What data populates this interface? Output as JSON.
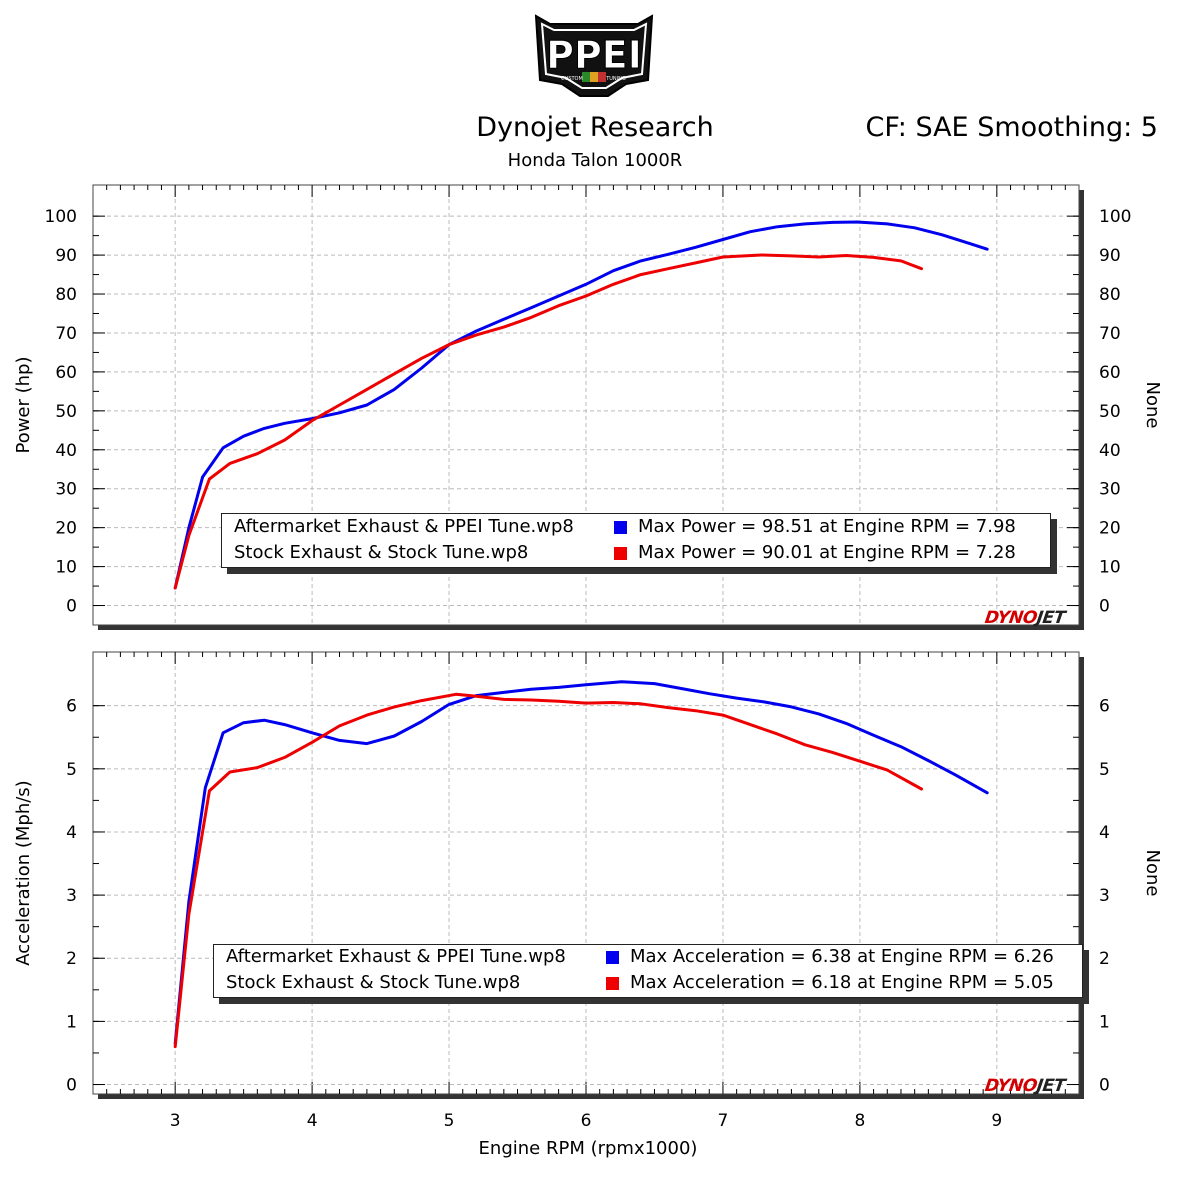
{
  "header": {
    "title": "Dynojet Research",
    "subtitle": "Honda Talon 1000R",
    "correction": "CF: SAE Smoothing: 5",
    "logo_text": "PPEI",
    "logo_tagline": "CUSTOM TUNING"
  },
  "watermark": {
    "part1": "DYNO",
    "part2": "JET"
  },
  "colors": {
    "tuned": "#0000ee",
    "stock": "#ee0000"
  },
  "chart_data": [
    {
      "type": "line",
      "ylabel": "Power (hp)",
      "ylabel_right": "None",
      "xlim": [
        2.4,
        9.6
      ],
      "ylim": [
        -5,
        108
      ],
      "yticks": [
        0,
        10,
        20,
        30,
        40,
        50,
        60,
        70,
        80,
        90,
        100
      ],
      "grid": true,
      "legend": {
        "placement": "bottom-right",
        "entries": [
          {
            "file": "Aftermarket Exhaust & PPEI Tune.wp8",
            "stat": "Max Power = 98.51 at Engine RPM = 7.98",
            "color": "#0000ee"
          },
          {
            "file": "Stock Exhaust & Stock Tune.wp8",
            "stat": "Max Power = 90.01 at Engine RPM = 7.28",
            "color": "#ee0000"
          }
        ]
      },
      "series": [
        {
          "name": "Aftermarket Exhaust & PPEI Tune.wp8",
          "color": "#0000ee",
          "x": [
            3.0,
            3.1,
            3.2,
            3.35,
            3.5,
            3.65,
            3.8,
            4.0,
            4.2,
            4.4,
            4.6,
            4.8,
            5.0,
            5.2,
            5.4,
            5.6,
            5.8,
            6.0,
            6.2,
            6.4,
            6.6,
            6.8,
            7.0,
            7.2,
            7.4,
            7.6,
            7.8,
            7.98,
            8.2,
            8.4,
            8.6,
            8.8,
            8.93
          ],
          "values": [
            4.5,
            20,
            33,
            40.5,
            43.5,
            45.5,
            46.8,
            48,
            49.5,
            51.5,
            55.5,
            61,
            67,
            70.5,
            73.5,
            76.5,
            79.5,
            82.5,
            86,
            88.5,
            90.2,
            92,
            94,
            96,
            97.3,
            98,
            98.4,
            98.51,
            98,
            97,
            95.2,
            93,
            91.5
          ]
        },
        {
          "name": "Stock Exhaust & Stock Tune.wp8",
          "color": "#ee0000",
          "x": [
            3.0,
            3.1,
            3.25,
            3.4,
            3.6,
            3.8,
            4.0,
            4.2,
            4.4,
            4.6,
            4.8,
            5.0,
            5.2,
            5.4,
            5.6,
            5.8,
            6.0,
            6.2,
            6.4,
            6.6,
            6.8,
            7.0,
            7.28,
            7.5,
            7.7,
            7.9,
            8.1,
            8.3,
            8.45
          ],
          "values": [
            4.5,
            18,
            32.5,
            36.5,
            39,
            42.5,
            47.5,
            51.5,
            55.5,
            59.5,
            63.5,
            67,
            69.5,
            71.5,
            74,
            77,
            79.5,
            82.5,
            85,
            86.5,
            88,
            89.5,
            90.01,
            89.8,
            89.5,
            89.9,
            89.4,
            88.5,
            86.5
          ]
        }
      ]
    },
    {
      "type": "line",
      "xlabel": "Engine RPM (rpmx1000)",
      "ylabel": "Acceleration (Mph/s)",
      "ylabel_right": "None",
      "xlim": [
        2.4,
        9.6
      ],
      "ylim": [
        -0.15,
        6.85
      ],
      "xticks": [
        3,
        4,
        5,
        6,
        7,
        8,
        9
      ],
      "yticks": [
        0,
        1,
        2,
        3,
        4,
        5,
        6
      ],
      "grid": true,
      "legend": {
        "placement": "bottom-right",
        "entries": [
          {
            "file": "Aftermarket Exhaust & PPEI Tune.wp8",
            "stat": "Max Acceleration = 6.38 at Engine RPM = 6.26",
            "color": "#0000ee"
          },
          {
            "file": "Stock Exhaust & Stock Tune.wp8",
            "stat": "Max Acceleration = 6.18 at Engine RPM = 5.05",
            "color": "#ee0000"
          }
        ]
      },
      "series": [
        {
          "name": "Aftermarket Exhaust & PPEI Tune.wp8",
          "color": "#0000ee",
          "x": [
            3.0,
            3.1,
            3.22,
            3.35,
            3.5,
            3.65,
            3.8,
            4.0,
            4.2,
            4.4,
            4.6,
            4.8,
            5.0,
            5.2,
            5.4,
            5.6,
            5.8,
            6.0,
            6.26,
            6.5,
            6.7,
            6.9,
            7.1,
            7.3,
            7.5,
            7.7,
            7.9,
            8.1,
            8.3,
            8.5,
            8.7,
            8.93
          ],
          "values": [
            0.65,
            2.9,
            4.7,
            5.57,
            5.73,
            5.77,
            5.7,
            5.57,
            5.45,
            5.4,
            5.52,
            5.75,
            6.02,
            6.16,
            6.21,
            6.26,
            6.29,
            6.33,
            6.38,
            6.35,
            6.27,
            6.19,
            6.12,
            6.06,
            5.98,
            5.87,
            5.72,
            5.53,
            5.35,
            5.13,
            4.9,
            4.62
          ]
        },
        {
          "name": "Stock Exhaust & Stock Tune.wp8",
          "color": "#ee0000",
          "x": [
            3.0,
            3.1,
            3.25,
            3.4,
            3.6,
            3.8,
            4.0,
            4.2,
            4.4,
            4.6,
            4.8,
            5.05,
            5.2,
            5.4,
            5.6,
            5.8,
            6.0,
            6.2,
            6.4,
            6.6,
            6.8,
            7.0,
            7.2,
            7.4,
            7.6,
            7.8,
            8.0,
            8.2,
            8.45
          ],
          "values": [
            0.6,
            2.7,
            4.65,
            4.95,
            5.02,
            5.18,
            5.42,
            5.68,
            5.85,
            5.98,
            6.08,
            6.18,
            6.15,
            6.1,
            6.09,
            6.07,
            6.04,
            6.05,
            6.03,
            5.97,
            5.92,
            5.85,
            5.7,
            5.55,
            5.38,
            5.26,
            5.12,
            4.98,
            4.68
          ]
        }
      ]
    }
  ]
}
